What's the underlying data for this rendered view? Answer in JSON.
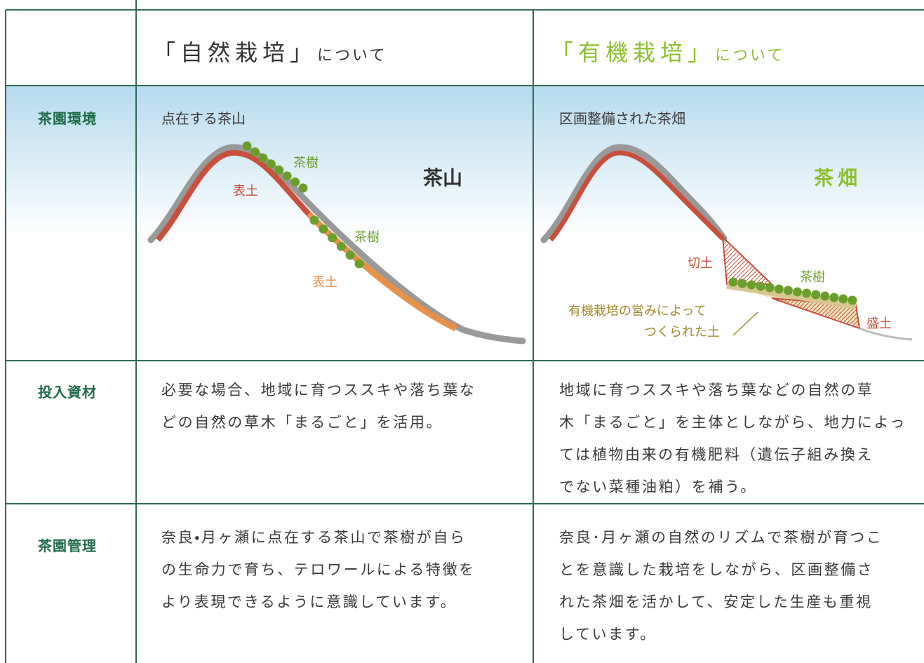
{
  "header": {
    "columns": [
      {
        "title": "「自然栽培」",
        "suffix": "について"
      },
      {
        "title": "「有機栽培」",
        "suffix": "について"
      }
    ]
  },
  "rows": [
    {
      "label": "茶園環境",
      "cells": [
        {
          "lines": [
            "点在する茶山"
          ],
          "illustration": {
            "title": "茶山",
            "labels": [
              "茶樹",
              "表土",
              "茶樹",
              "表土"
            ]
          }
        },
        {
          "lines": [
            "区画整備された茶畑"
          ],
          "illustration": {
            "title": "茶畑",
            "labels": [
              "切土",
              "茶樹",
              "有機栽培の営みによって",
              "つくられた土",
              "盛土"
            ]
          }
        }
      ]
    },
    {
      "label": "投入資材",
      "cells": [
        {
          "lines": [
            "必要な場合、地域に育つススキや落ち葉な",
            "どの自然の草木「まるごと」を活用。"
          ]
        },
        {
          "lines": [
            "地域に育つススキや落ち葉などの自然の草",
            "木「まるごと」を主体としながら、地力によっ",
            "ては植物由来の有機肥料（遺伝子組み換え",
            "でない菜種油粕）を補う。"
          ]
        }
      ]
    },
    {
      "label": "茶園管理",
      "cells": [
        {
          "lines": [
            "奈良・月ヶ瀬に点在する茶山で茶樹が自ら",
            "の生命力で育ち、テロワールによる特徴を",
            "より表現できるように意識しています。"
          ]
        },
        {
          "lines": [
            "奈良･月ヶ瀬の自然のリズムで茶樹が育つこ",
            "とを意識した栽培をしながら、区画整備さ",
            "れた茶畑を活かして、安定した生産も重視",
            "しています。"
          ]
        }
      ]
    }
  ]
}
